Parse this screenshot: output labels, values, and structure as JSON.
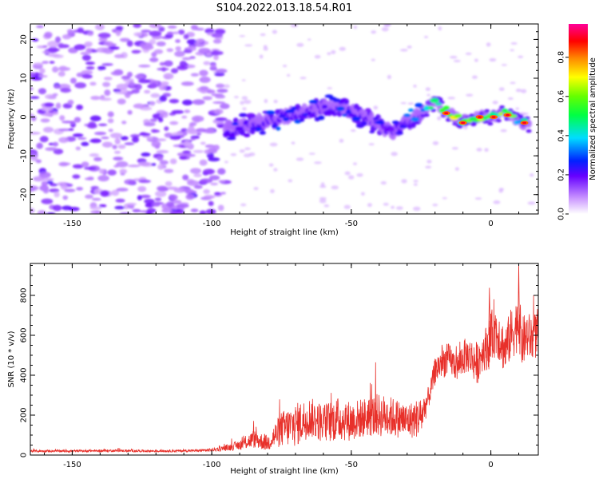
{
  "title": "S104.2022.013.18.54.R01",
  "chart_data": [
    {
      "type": "heatmap",
      "xlabel": "Height of straight line (km)",
      "ylabel": "Frequency (Hz)",
      "xlim": [
        -165,
        17
      ],
      "ylim": [
        -25,
        24
      ],
      "xticks": [
        -150,
        -100,
        -50,
        0
      ],
      "yticks": [
        -20,
        -10,
        0,
        10,
        20
      ],
      "colorbar": {
        "label": "Normalized spectral amplitude",
        "range": [
          0.0,
          0.97
        ],
        "ticks": [
          0.0,
          0.2,
          0.4,
          0.6,
          0.8
        ]
      },
      "noise_region_x": [
        -165,
        -95
      ],
      "signal_ridge": {
        "x": [
          -95,
          -85,
          -75,
          -65,
          -55,
          -45,
          -35,
          -25,
          -20,
          -15,
          -10,
          -5,
          0,
          5,
          10,
          14
        ],
        "frequency_hz": [
          -3,
          -2,
          0,
          2,
          3,
          0,
          -4,
          1,
          4,
          1,
          -1,
          0,
          0,
          1,
          -1,
          -2
        ],
        "peak_amplitude": [
          0.3,
          0.3,
          0.35,
          0.3,
          0.35,
          0.25,
          0.3,
          0.5,
          0.55,
          0.85,
          0.85,
          0.8,
          0.6,
          0.7,
          0.6,
          0.5
        ]
      }
    },
    {
      "type": "line",
      "xlabel": "Height of straight line (km)",
      "ylabel": "SNR (10 * v/v)",
      "xlim": [
        -165,
        17
      ],
      "ylim": [
        0,
        960
      ],
      "xticks": [
        -150,
        -100,
        -50,
        0
      ],
      "yticks": [
        0,
        200,
        400,
        600,
        800
      ],
      "color": "#e8302a",
      "series": [
        {
          "x": [
            -165,
            -150,
            -135,
            -120,
            -105,
            -100,
            -95,
            -90,
            -85,
            -80,
            -75,
            -70,
            -65,
            -60,
            -55,
            -50,
            -45,
            -40,
            -35,
            -30,
            -25,
            -22,
            -20,
            -18,
            -15,
            -12,
            -10,
            -8,
            -5,
            -3,
            0,
            1,
            3,
            5,
            7,
            9,
            10,
            11,
            13,
            15,
            17
          ],
          "y": [
            20,
            20,
            22,
            20,
            22,
            25,
            35,
            50,
            80,
            60,
            130,
            150,
            190,
            160,
            180,
            170,
            190,
            200,
            190,
            170,
            190,
            300,
            420,
            460,
            480,
            440,
            490,
            500,
            460,
            520,
            560,
            640,
            600,
            520,
            600,
            640,
            700,
            560,
            600,
            580,
            620
          ],
          "spread": [
            6,
            6,
            6,
            6,
            6,
            8,
            15,
            25,
            45,
            40,
            90,
            110,
            100,
            100,
            110,
            100,
            100,
            110,
            100,
            90,
            100,
            50,
            70,
            80,
            80,
            70,
            90,
            90,
            110,
            100,
            130,
            150,
            130,
            120,
            130,
            140,
            150,
            130,
            120,
            120,
            120
          ]
        }
      ],
      "annotated_peaks": [
        {
          "x": -0.5,
          "y": 838
        },
        {
          "x": 10,
          "y": 960
        }
      ]
    }
  ]
}
